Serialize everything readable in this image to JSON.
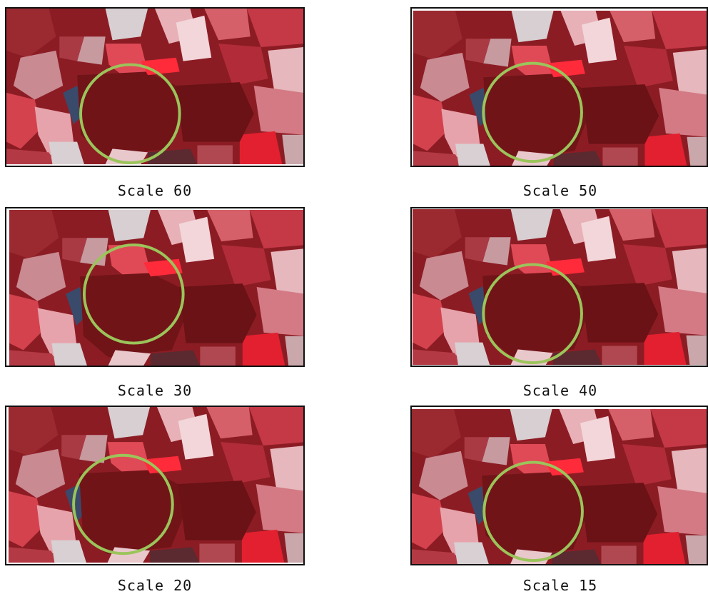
{
  "panels": [
    {
      "caption": "Scale 60"
    },
    {
      "caption": "Scale 50"
    },
    {
      "caption": "Scale 30"
    },
    {
      "caption": "Scale 40"
    },
    {
      "caption": "Scale 20"
    },
    {
      "caption": "Scale 15"
    }
  ]
}
